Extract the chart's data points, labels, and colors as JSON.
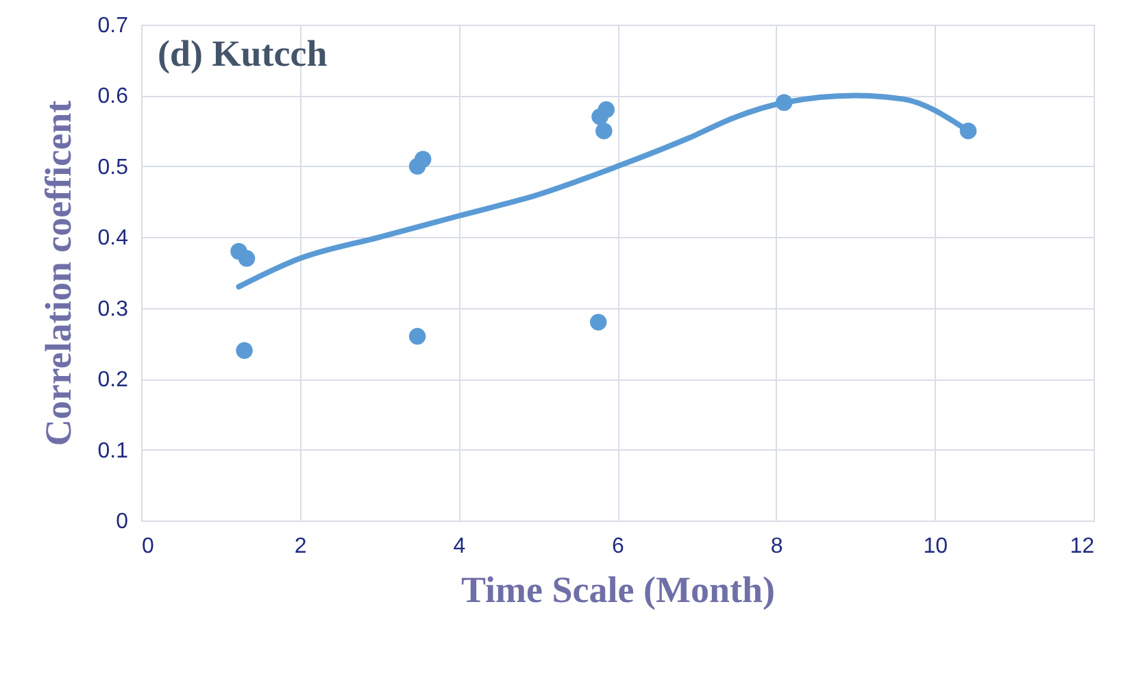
{
  "chart_data": {
    "type": "scatter",
    "title": "(d) Kutcch",
    "xlabel": "Time Scale (Month)",
    "ylabel": "Correlation coefficent",
    "xlim": [
      0,
      12
    ],
    "xticks": [
      0,
      2,
      4,
      6,
      8,
      10,
      12
    ],
    "ylim": [
      0,
      0.7
    ],
    "yticks": [
      0,
      0.1,
      0.2,
      0.3,
      0.4,
      0.5,
      0.6,
      0.7
    ],
    "grid": true,
    "series": [
      {
        "type": "scatter",
        "marker": "circle",
        "color": "#5b9bd5",
        "x": [
          1.23,
          1.33,
          1.3,
          3.48,
          3.55,
          3.48,
          5.78,
          5.86,
          5.83,
          5.76,
          8.1,
          10.42
        ],
        "values": [
          0.38,
          0.37,
          0.24,
          0.5,
          0.51,
          0.26,
          0.57,
          0.58,
          0.55,
          0.28,
          0.59,
          0.55
        ]
      },
      {
        "type": "line",
        "marker": "none",
        "line_style": "solid",
        "color": "#5b9bd5",
        "x": [
          1.23,
          2.0,
          3.0,
          4.0,
          5.0,
          6.0,
          6.9,
          7.5,
          8.1,
          9.0,
          9.6,
          10.42
        ],
        "values": [
          0.33,
          0.37,
          0.4,
          0.43,
          0.46,
          0.5,
          0.54,
          0.57,
          0.59,
          0.6,
          0.595,
          0.55
        ]
      }
    ]
  }
}
